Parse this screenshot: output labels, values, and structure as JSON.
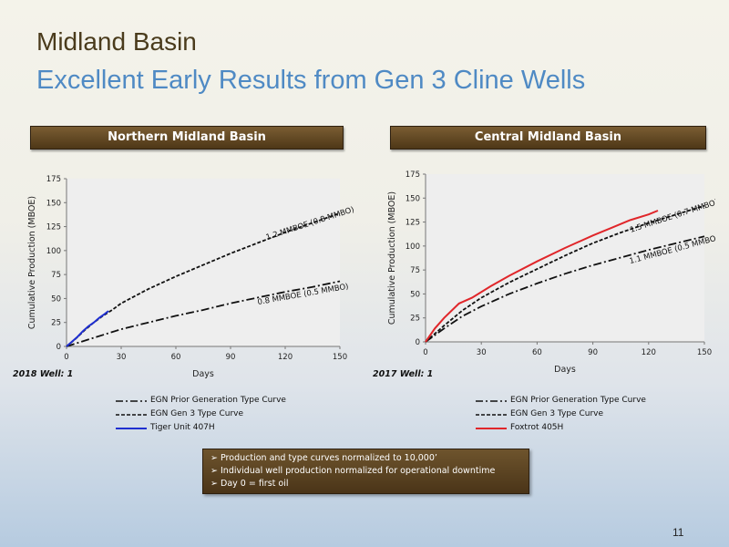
{
  "slide": {
    "title": "Midland Basin",
    "subtitle": "Excellent Early Results from Gen 3 Cline Wells",
    "page_number": "11"
  },
  "notes": [
    "Production and type curves normalized to 10,000’",
    "Individual well production normalized for operational downtime",
    "Day 0 = first oil"
  ],
  "colors": {
    "banner": "#5e4524",
    "title": "#4a3b1c",
    "subtitle": "#4f8ac4",
    "tiger": "#1f2fd0",
    "foxtrot": "#e0262a"
  },
  "chart_data": [
    {
      "type": "line",
      "title": "Northern Midland Basin",
      "xlabel": "Days",
      "ylabel": "Cumulative Production (MBOE)",
      "xlim": [
        0,
        150
      ],
      "ylim": [
        0,
        175
      ],
      "xticks": [
        0,
        30,
        60,
        90,
        120,
        150
      ],
      "yticks": [
        0,
        25,
        50,
        75,
        100,
        125,
        150,
        175
      ],
      "well_note": "2018 Well:    1",
      "series": [
        {
          "name": "EGN Prior Generation Type Curve",
          "style": "dashdot",
          "color": "#111111",
          "x": [
            0,
            15,
            30,
            45,
            60,
            75,
            90,
            105,
            120,
            135,
            150
          ],
          "y": [
            0,
            9,
            18,
            25,
            32,
            38,
            45,
            51,
            57,
            62,
            68
          ]
        },
        {
          "name": "EGN Gen 3 Type Curve",
          "style": "dashed",
          "color": "#111111",
          "x": [
            0,
            5,
            10,
            15,
            20,
            25,
            30,
            45,
            60,
            75,
            90,
            105,
            120,
            135,
            150
          ],
          "y": [
            0,
            8,
            17,
            25,
            32,
            38,
            45,
            60,
            73,
            85,
            97,
            108,
            119,
            129,
            139
          ]
        },
        {
          "name": "Tiger Unit 407H",
          "style": "solid",
          "color": "#1f2fd0",
          "x": [
            0,
            3,
            6,
            9,
            12,
            15,
            18,
            21,
            23
          ],
          "y": [
            0,
            5,
            10,
            16,
            21,
            25,
            30,
            34,
            37
          ]
        }
      ],
      "annotations": [
        {
          "text": "1.2 MMBOE (0.8 MMBO)",
          "x": 134,
          "y": 126,
          "angle": -18
        },
        {
          "text": "0.8 MMBOE (0.5 MMBO)",
          "x": 130,
          "y": 52,
          "angle": -10
        }
      ]
    },
    {
      "type": "line",
      "title": "Central Midland Basin",
      "xlabel": "Days",
      "ylabel": "Cumulative Production (MBOE)",
      "xlim": [
        0,
        150
      ],
      "ylim": [
        0,
        175
      ],
      "xticks": [
        0,
        30,
        60,
        90,
        120,
        150
      ],
      "yticks": [
        0,
        25,
        50,
        75,
        100,
        125,
        150,
        175
      ],
      "well_note": "2017 Well:    1",
      "series": [
        {
          "name": "EGN Prior Generation Type Curve",
          "style": "dashdot",
          "color": "#111111",
          "x": [
            0,
            10,
            20,
            30,
            45,
            60,
            75,
            90,
            105,
            120,
            135,
            150
          ],
          "y": [
            0,
            14,
            27,
            37,
            50,
            61,
            71,
            80,
            88,
            96,
            103,
            110
          ]
        },
        {
          "name": "EGN Gen 3 Type Curve",
          "style": "dashed",
          "color": "#111111",
          "x": [
            0,
            10,
            20,
            30,
            45,
            60,
            75,
            90,
            105,
            120,
            135,
            150
          ],
          "y": [
            0,
            17,
            33,
            46,
            62,
            76,
            90,
            103,
            114,
            124,
            133,
            142
          ]
        },
        {
          "name": "Foxtrot 405H",
          "style": "solid",
          "color": "#e0262a",
          "x": [
            0,
            5,
            10,
            18,
            25,
            35,
            45,
            60,
            75,
            90,
            100,
            110,
            120,
            125
          ],
          "y": [
            0,
            14,
            25,
            40,
            46,
            58,
            69,
            84,
            98,
            111,
            119,
            127,
            133,
            137
          ]
        }
      ],
      "annotations": [
        {
          "text": "1.5 MMBOE (0.7 MMBO)",
          "x": 134,
          "y": 129,
          "angle": -18
        },
        {
          "text": "1.1 MMBOE (0.5 MMBO)",
          "x": 134,
          "y": 94,
          "angle": -15
        }
      ]
    }
  ]
}
